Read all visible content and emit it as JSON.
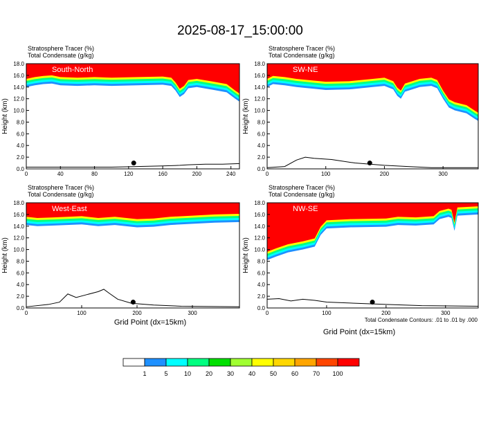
{
  "title": "2025-08-17_15:00:00",
  "colors": {
    "red": "#ff0000",
    "tracer_bands": [
      "#ffffff",
      "#1e90ff",
      "#00ffff",
      "#00ff80",
      "#00e000",
      "#a0ff30",
      "#ffff00",
      "#ffd700",
      "#ffa500",
      "#ff4500",
      "#ff0000"
    ],
    "contour": "#000000"
  },
  "colorbar": {
    "labels": [
      "1",
      "5",
      "10",
      "20",
      "30",
      "40",
      "50",
      "60",
      "70",
      "100"
    ]
  },
  "xlabel": "Grid Point (dx=15km)",
  "footnote": "Total Condensate Contours: .01 to .01 by .000",
  "chart_data": [
    {
      "type": "heatmap",
      "name": "South-North",
      "header_lines": [
        "Stratosphere Tracer    (%)",
        "Total Condensate    (g/kg)"
      ],
      "ylabel": "Height (km)",
      "xlim": [
        0,
        250
      ],
      "ylim": [
        0,
        18
      ],
      "xticks": [
        0,
        40,
        80,
        120,
        160,
        200,
        240
      ],
      "yticks": [
        "0.0",
        "2.0",
        "4.0",
        "6.0",
        "8.0",
        "10.0",
        "12.0",
        "14.0",
        "16.0",
        "18.0"
      ],
      "tropopause": [
        [
          0,
          14.0
        ],
        [
          10,
          14.3
        ],
        [
          20,
          14.5
        ],
        [
          30,
          14.6
        ],
        [
          40,
          14.3
        ],
        [
          60,
          14.2
        ],
        [
          80,
          14.3
        ],
        [
          100,
          14.2
        ],
        [
          130,
          14.3
        ],
        [
          160,
          14.4
        ],
        [
          170,
          14.2
        ],
        [
          175,
          13.4
        ],
        [
          180,
          12.3
        ],
        [
          185,
          12.8
        ],
        [
          190,
          13.8
        ],
        [
          200,
          14.0
        ],
        [
          220,
          13.5
        ],
        [
          235,
          13.1
        ],
        [
          245,
          12.0
        ],
        [
          250,
          11.5
        ]
      ],
      "terrain": [
        [
          0,
          0.3
        ],
        [
          100,
          0.3
        ],
        [
          130,
          0.4
        ],
        [
          160,
          0.5
        ],
        [
          180,
          0.6
        ],
        [
          190,
          0.7
        ],
        [
          210,
          0.8
        ],
        [
          230,
          0.8
        ],
        [
          250,
          0.9
        ]
      ],
      "marker": [
        126,
        1.0
      ]
    },
    {
      "type": "heatmap",
      "name": "SW-NE",
      "header_lines": [
        "Stratosphere Tracer    (%)",
        "Total Condensate    (g/kg)"
      ],
      "ylabel": "Height (km)",
      "xlim": [
        0,
        360
      ],
      "ylim": [
        0,
        18
      ],
      "xticks": [
        0,
        100,
        200,
        300
      ],
      "yticks": [
        "0.0",
        "2.0",
        "4.0",
        "6.0",
        "8.0",
        "10.0",
        "12.0",
        "14.0",
        "16.0",
        "18.0"
      ],
      "tropopause": [
        [
          0,
          14.0
        ],
        [
          10,
          14.5
        ],
        [
          30,
          14.3
        ],
        [
          50,
          14.0
        ],
        [
          80,
          13.7
        ],
        [
          100,
          13.5
        ],
        [
          140,
          13.6
        ],
        [
          180,
          14.0
        ],
        [
          200,
          14.2
        ],
        [
          215,
          13.6
        ],
        [
          222,
          12.5
        ],
        [
          228,
          12.0
        ],
        [
          235,
          13.2
        ],
        [
          260,
          14.0
        ],
        [
          280,
          14.2
        ],
        [
          290,
          13.8
        ],
        [
          300,
          12.0
        ],
        [
          310,
          10.5
        ],
        [
          320,
          10.0
        ],
        [
          340,
          9.5
        ],
        [
          355,
          8.5
        ],
        [
          360,
          8.2
        ]
      ],
      "terrain": [
        [
          0,
          0.2
        ],
        [
          30,
          0.4
        ],
        [
          50,
          1.5
        ],
        [
          65,
          2.0
        ],
        [
          80,
          1.8
        ],
        [
          110,
          1.6
        ],
        [
          150,
          1.0
        ],
        [
          200,
          0.6
        ],
        [
          240,
          0.4
        ],
        [
          280,
          0.2
        ],
        [
          360,
          0.2
        ]
      ],
      "marker": [
        175,
        1.0
      ]
    },
    {
      "type": "heatmap",
      "name": "West-East",
      "header_lines": [
        "Stratosphere Tracer    (%)",
        "Total Condensate    (g/kg)"
      ],
      "ylabel": "Height (km)",
      "xlim": [
        0,
        385
      ],
      "ylim": [
        0,
        18
      ],
      "xticks": [
        0,
        100,
        200,
        300
      ],
      "yticks": [
        "0.0",
        "2.0",
        "4.0",
        "6.0",
        "8.0",
        "10.0",
        "12.0",
        "14.0",
        "16.0",
        "18.0"
      ],
      "tropopause": [
        [
          0,
          14.2
        ],
        [
          20,
          14.0
        ],
        [
          50,
          14.1
        ],
        [
          100,
          14.3
        ],
        [
          130,
          14.0
        ],
        [
          160,
          14.2
        ],
        [
          200,
          13.8
        ],
        [
          230,
          13.9
        ],
        [
          260,
          14.2
        ],
        [
          300,
          14.4
        ],
        [
          340,
          14.6
        ],
        [
          385,
          14.7
        ]
      ],
      "terrain": [
        [
          0,
          0.2
        ],
        [
          40,
          0.6
        ],
        [
          60,
          1.0
        ],
        [
          75,
          2.4
        ],
        [
          90,
          1.8
        ],
        [
          110,
          2.3
        ],
        [
          130,
          2.8
        ],
        [
          140,
          3.2
        ],
        [
          150,
          2.5
        ],
        [
          165,
          1.5
        ],
        [
          190,
          0.8
        ],
        [
          230,
          0.5
        ],
        [
          280,
          0.3
        ],
        [
          385,
          0.2
        ]
      ],
      "marker": [
        193,
        1.0
      ]
    },
    {
      "type": "heatmap",
      "name": "NW-SE",
      "header_lines": [
        "Stratosphere Tracer    (%)",
        "Total Condensate    (g/kg)"
      ],
      "ylabel": "Height (km)",
      "xlim": [
        0,
        355
      ],
      "ylim": [
        0,
        18
      ],
      "xticks": [
        0,
        100,
        200,
        300
      ],
      "yticks": [
        "0.0",
        "2.0",
        "4.0",
        "6.0",
        "8.0",
        "10.0",
        "12.0",
        "14.0",
        "16.0",
        "18.0"
      ],
      "tropopause": [
        [
          0,
          8.2
        ],
        [
          15,
          8.8
        ],
        [
          35,
          9.5
        ],
        [
          60,
          10.0
        ],
        [
          80,
          10.5
        ],
        [
          90,
          12.5
        ],
        [
          100,
          13.6
        ],
        [
          140,
          13.8
        ],
        [
          200,
          13.9
        ],
        [
          220,
          14.2
        ],
        [
          250,
          14.1
        ],
        [
          280,
          14.3
        ],
        [
          290,
          15.2
        ],
        [
          305,
          15.6
        ],
        [
          310,
          15.4
        ],
        [
          315,
          13.2
        ],
        [
          320,
          15.8
        ],
        [
          355,
          16.0
        ]
      ],
      "terrain": [
        [
          0,
          1.5
        ],
        [
          20,
          1.6
        ],
        [
          40,
          1.2
        ],
        [
          60,
          1.5
        ],
        [
          80,
          1.3
        ],
        [
          100,
          1.0
        ],
        [
          150,
          0.8
        ],
        [
          200,
          0.6
        ],
        [
          260,
          0.4
        ],
        [
          355,
          0.3
        ]
      ],
      "marker": [
        177,
        1.0
      ]
    }
  ]
}
